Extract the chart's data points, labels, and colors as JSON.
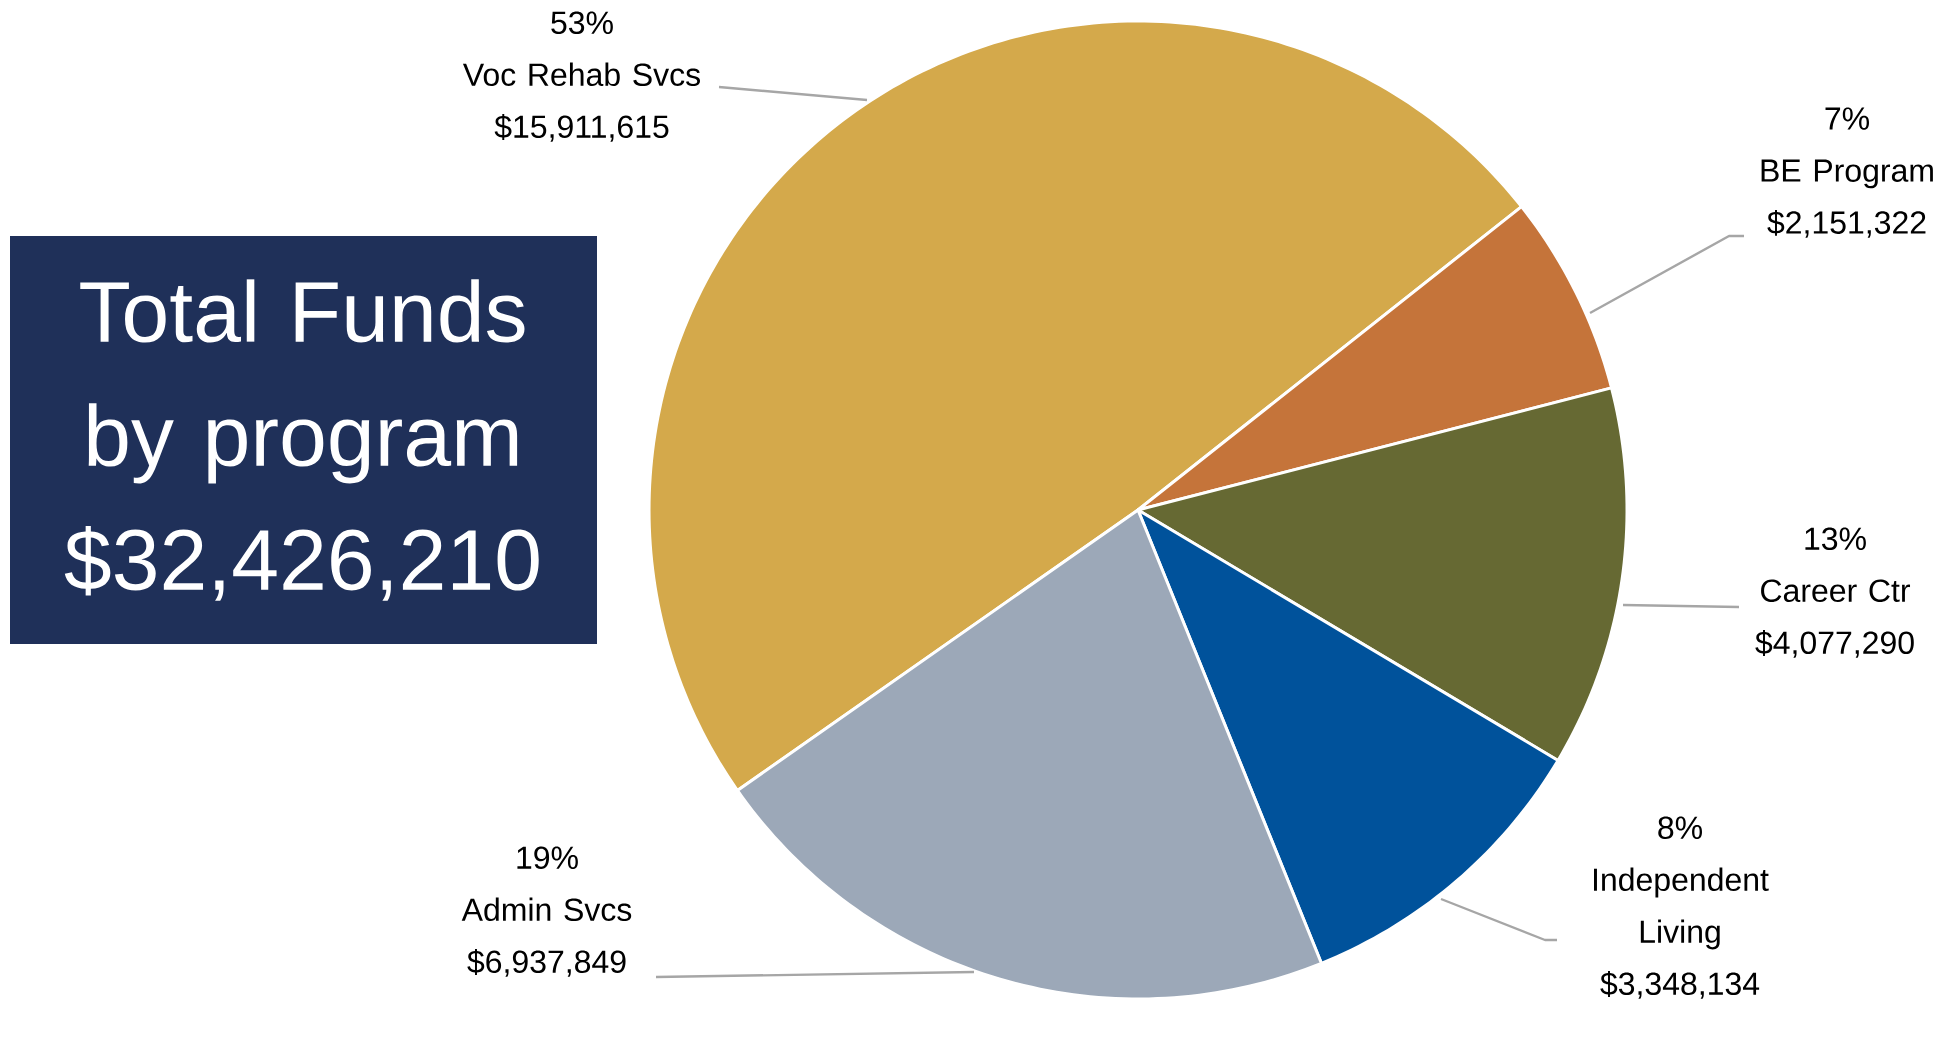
{
  "chart_data": {
    "type": "pie",
    "title": "Total Funds by program",
    "subtitle": "$32,426,210",
    "categories": [
      "Voc Rehab Svcs",
      "BE Program",
      "Career Ctr",
      "Independent Living",
      "Admin Svcs"
    ],
    "values": [
      15911615,
      2151322,
      4077290,
      3348134,
      6937849
    ],
    "colors": [
      "#d4a94b",
      "#c5743a",
      "#666933",
      "#00529b",
      "#9ca8b8"
    ],
    "value_labels": [
      "$15,911,615",
      "$2,151,322",
      "$4,077,290",
      "$3,348,134",
      "$6,937,849"
    ],
    "annotations": [
      "53%",
      "7%",
      "13%",
      "8%",
      "19%"
    ]
  }
}
